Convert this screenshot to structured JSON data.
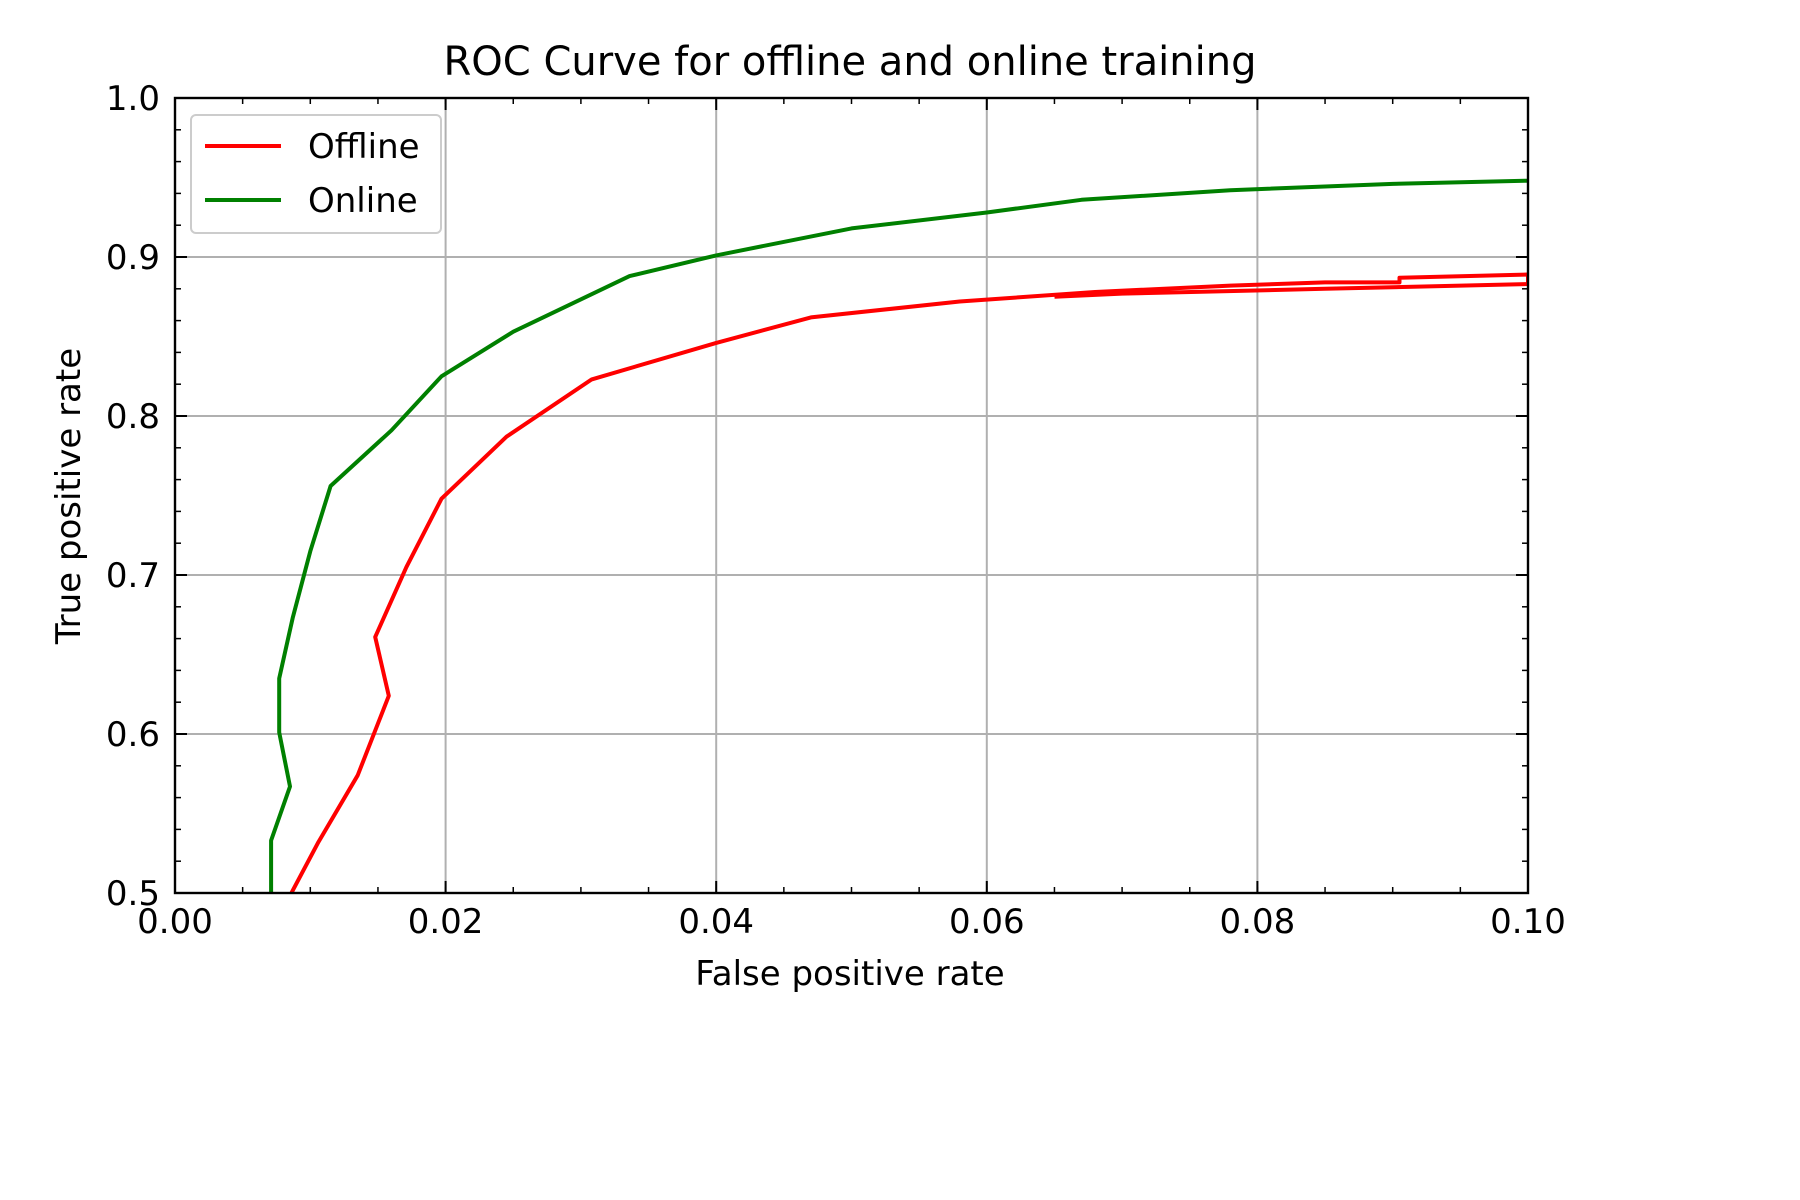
{
  "chart_data": {
    "type": "line",
    "title": "ROC Curve for offline and online training",
    "xlabel": "False positive rate",
    "ylabel": "True positive rate",
    "xlim": [
      0.0,
      0.1
    ],
    "ylim": [
      0.5,
      1.0
    ],
    "xticks": [
      "0.00",
      "0.02",
      "0.04",
      "0.06",
      "0.08",
      "0.10"
    ],
    "yticks": [
      "0.5",
      "0.6",
      "0.7",
      "0.8",
      "0.9",
      "1.0"
    ],
    "grid": true,
    "legend_position": "upper-left",
    "series": [
      {
        "name": "Offline",
        "color": "#ff0000",
        "x": [
          0.0086,
          0.0106,
          0.0135,
          0.0158,
          0.0148,
          0.0171,
          0.0197,
          0.0245,
          0.0308,
          0.04,
          0.047,
          0.058,
          0.068,
          0.078,
          0.085,
          0.0905,
          0.0905,
          0.1,
          0.1,
          0.085,
          0.07,
          0.065
        ],
        "y": [
          0.5,
          0.532,
          0.574,
          0.624,
          0.661,
          0.705,
          0.748,
          0.787,
          0.823,
          0.846,
          0.862,
          0.872,
          0.878,
          0.882,
          0.884,
          0.884,
          0.887,
          0.889,
          0.883,
          0.88,
          0.877,
          0.875
        ]
      },
      {
        "name": "Online",
        "color": "#008000",
        "x": [
          0.0071,
          0.0071,
          0.0085,
          0.0077,
          0.0077,
          0.0087,
          0.01,
          0.0115,
          0.016,
          0.0197,
          0.025,
          0.0336,
          0.04,
          0.05,
          0.06,
          0.067,
          0.078,
          0.09,
          0.1
        ],
        "y": [
          0.5,
          0.533,
          0.567,
          0.601,
          0.635,
          0.673,
          0.715,
          0.756,
          0.791,
          0.825,
          0.853,
          0.888,
          0.901,
          0.918,
          0.928,
          0.936,
          0.942,
          0.946,
          0.948
        ]
      }
    ]
  }
}
